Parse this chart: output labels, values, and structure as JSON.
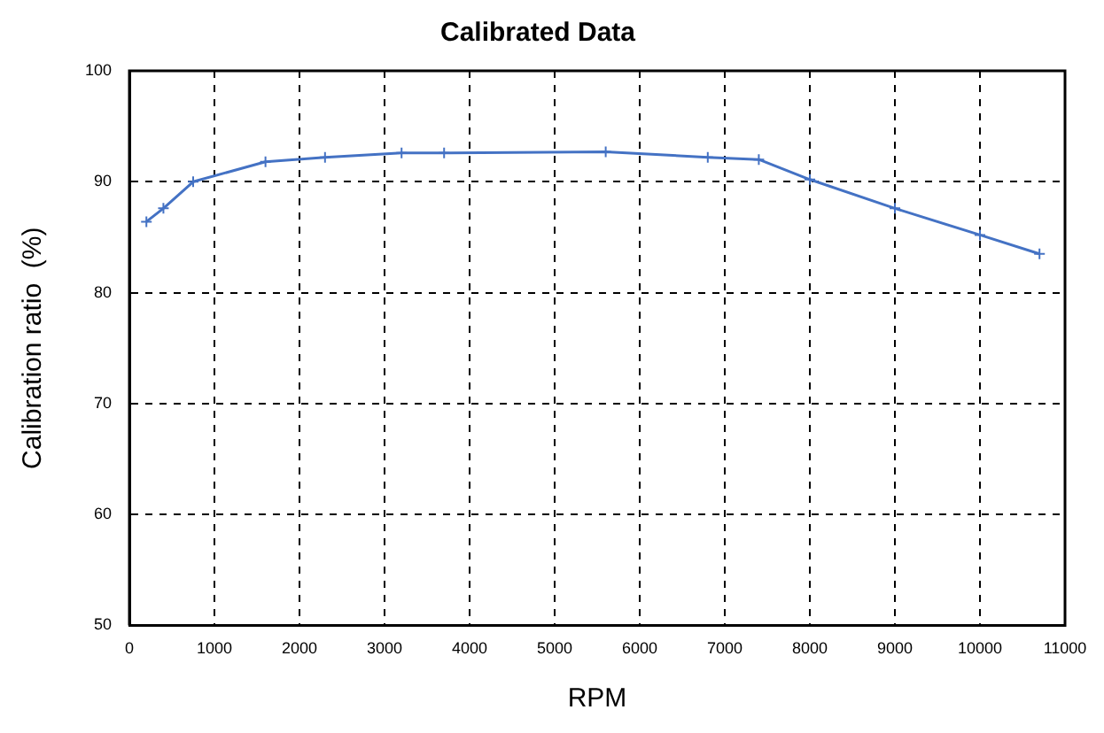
{
  "chart_data": {
    "type": "line",
    "title": "Calibrated Data",
    "xlabel": "RPM",
    "ylabel": "Calibration ratio  (%)",
    "x": [
      200,
      400,
      750,
      1600,
      2300,
      3200,
      3700,
      5600,
      6800,
      7400,
      8000,
      9000,
      10000,
      10700
    ],
    "series": [
      {
        "color": "#4472c4",
        "values": [
          86.4,
          87.6,
          90,
          91.8,
          92.2,
          92.6,
          92.6,
          92.7,
          92.2,
          92,
          90.2,
          87.6,
          85.2,
          83.5
        ]
      }
    ],
    "xlim": [
      0,
      11000
    ],
    "xticks": [
      0,
      1000,
      2000,
      3000,
      4000,
      5000,
      6000,
      7000,
      8000,
      9000,
      10000,
      11000
    ],
    "ylim": [
      50,
      100
    ],
    "yticks": [
      50,
      60,
      70,
      80,
      90,
      100
    ],
    "grid": true,
    "legend": false,
    "marker": "cross",
    "line_style": "solid"
  }
}
